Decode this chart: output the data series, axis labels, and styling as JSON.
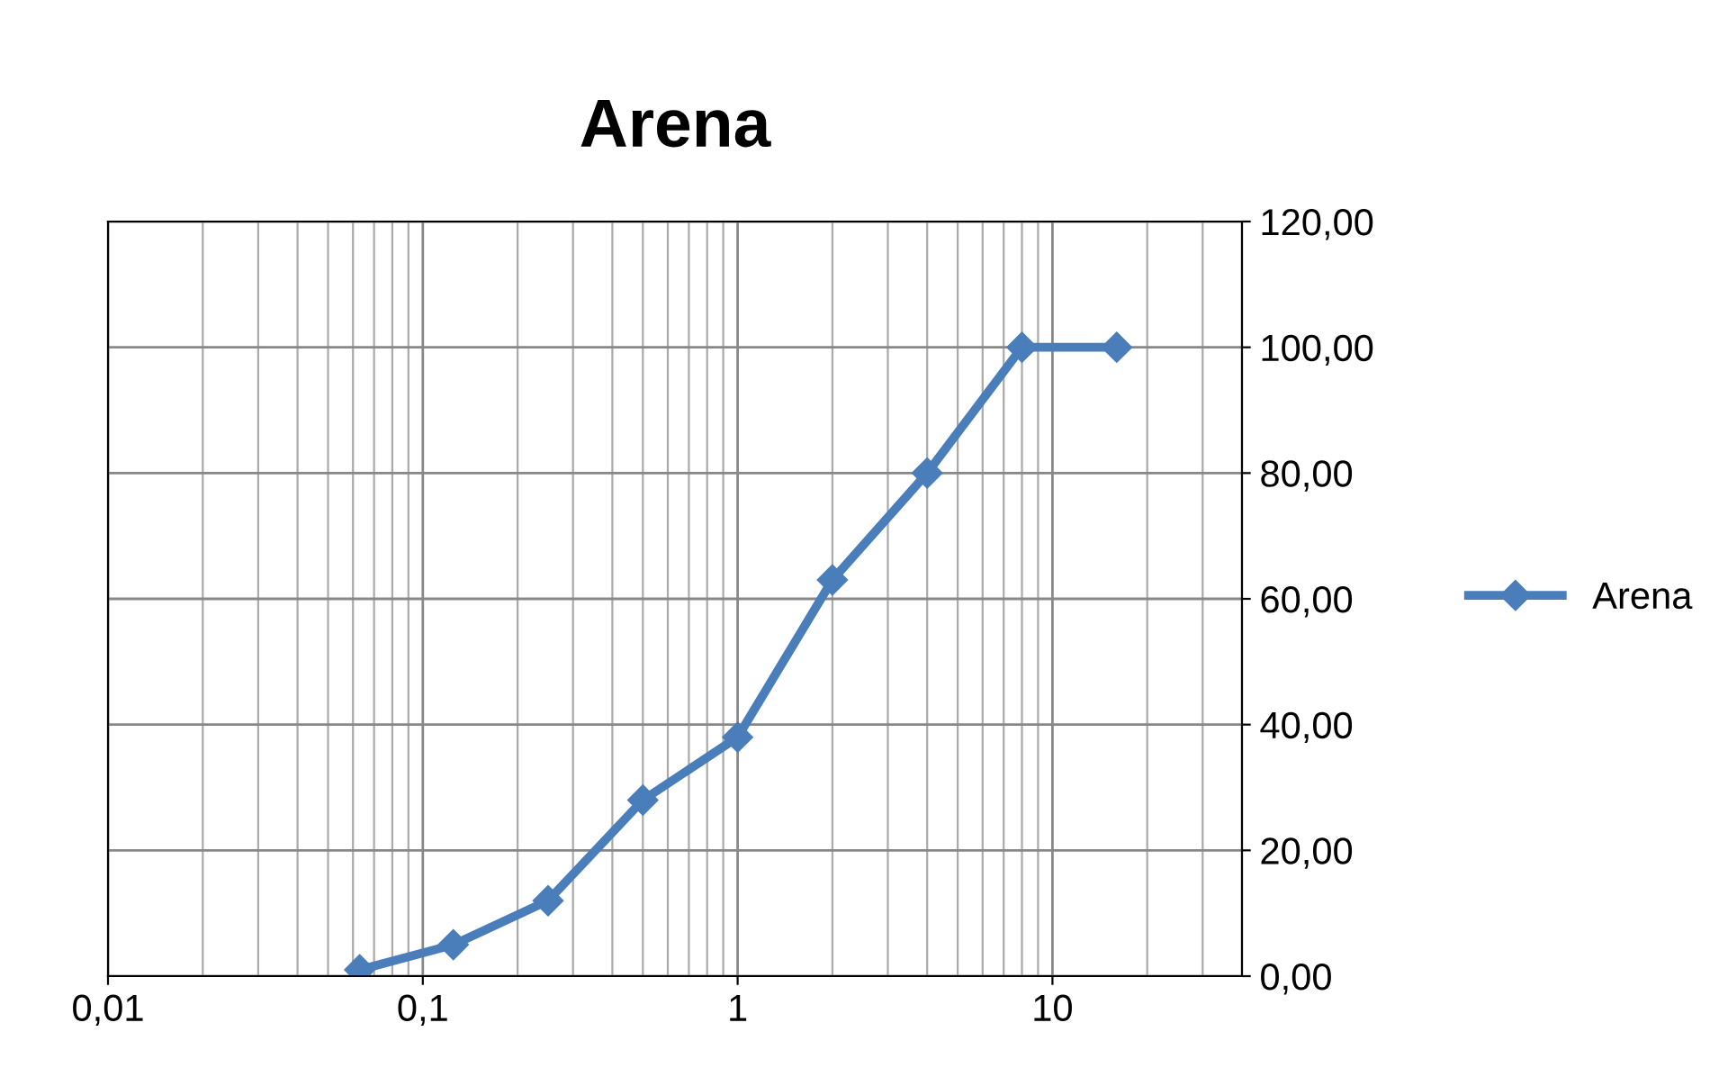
{
  "chart_data": {
    "type": "line",
    "title": "Arena",
    "x": [
      0.063,
      0.125,
      0.25,
      0.5,
      1,
      2,
      4,
      8,
      16
    ],
    "series": [
      {
        "name": "Arena",
        "color": "#4a7ebb",
        "values": [
          1,
          5,
          12,
          28,
          38,
          63,
          80,
          100,
          100
        ]
      }
    ],
    "log": "x",
    "xlim": [
      0.01,
      40
    ],
    "xticks": [
      {
        "value": 0.01,
        "label": "0,01"
      },
      {
        "value": 0.1,
        "label": "0,1"
      },
      1,
      10
    ],
    "ylim": [
      0,
      120
    ],
    "yticks": [
      {
        "value": 0,
        "label": "0,00"
      },
      {
        "value": 20,
        "label": "20,00"
      },
      {
        "value": 40,
        "label": "40,00"
      },
      {
        "value": 60,
        "label": "60,00"
      },
      {
        "value": 80,
        "label": "80,00"
      },
      {
        "value": 100,
        "label": "100,00"
      },
      {
        "value": 120,
        "label": "120,00"
      }
    ],
    "grid": true,
    "legend": "right",
    "marker": "diamond",
    "line_style": "solid"
  }
}
